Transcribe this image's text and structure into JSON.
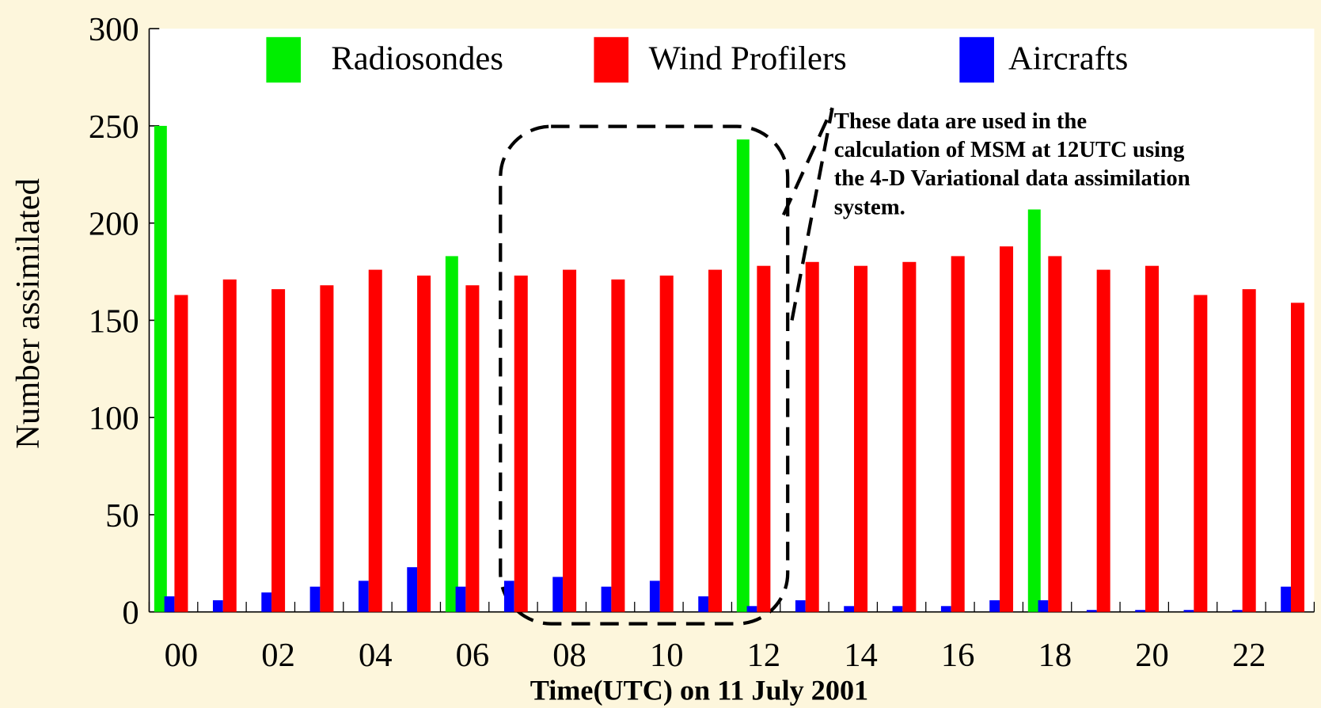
{
  "chart_data": {
    "type": "bar",
    "xlabel": "Time(UTC) on 11 July 2001",
    "ylabel": "Number assimilated",
    "annotation": [
      "These data are used in the",
      "calculation of MSM at 12UTC using",
      "the 4-D Variational data assimilation",
      "system."
    ],
    "categories": [
      "00",
      null,
      "02",
      null,
      "04",
      null,
      "06",
      null,
      "08",
      null,
      "10",
      null,
      "12",
      null,
      "14",
      null,
      "16",
      null,
      "18",
      null,
      "20",
      null,
      "22",
      null
    ],
    "series": [
      {
        "name": "Radiosondes",
        "color": "#00ee00",
        "values": [
          250,
          0,
          0,
          0,
          0,
          0,
          183,
          0,
          0,
          0,
          0,
          0,
          243,
          0,
          0,
          0,
          0,
          0,
          207,
          0,
          0,
          0,
          0,
          0
        ]
      },
      {
        "name": "Wind Profilers",
        "color": "#ff0000",
        "values": [
          163,
          171,
          166,
          168,
          176,
          173,
          168,
          173,
          176,
          171,
          173,
          176,
          178,
          180,
          178,
          180,
          183,
          188,
          183,
          176,
          178,
          163,
          166,
          159
        ]
      },
      {
        "name": "Aircrafts",
        "color": "#0000ff",
        "values": [
          8,
          6,
          10,
          13,
          16,
          23,
          13,
          16,
          18,
          13,
          16,
          8,
          3,
          6,
          3,
          3,
          3,
          6,
          6,
          1,
          1,
          1,
          1,
          13
        ]
      }
    ],
    "ylim": [
      0,
      300
    ],
    "yticks": [
      0,
      50,
      100,
      150,
      200,
      250,
      300
    ]
  }
}
